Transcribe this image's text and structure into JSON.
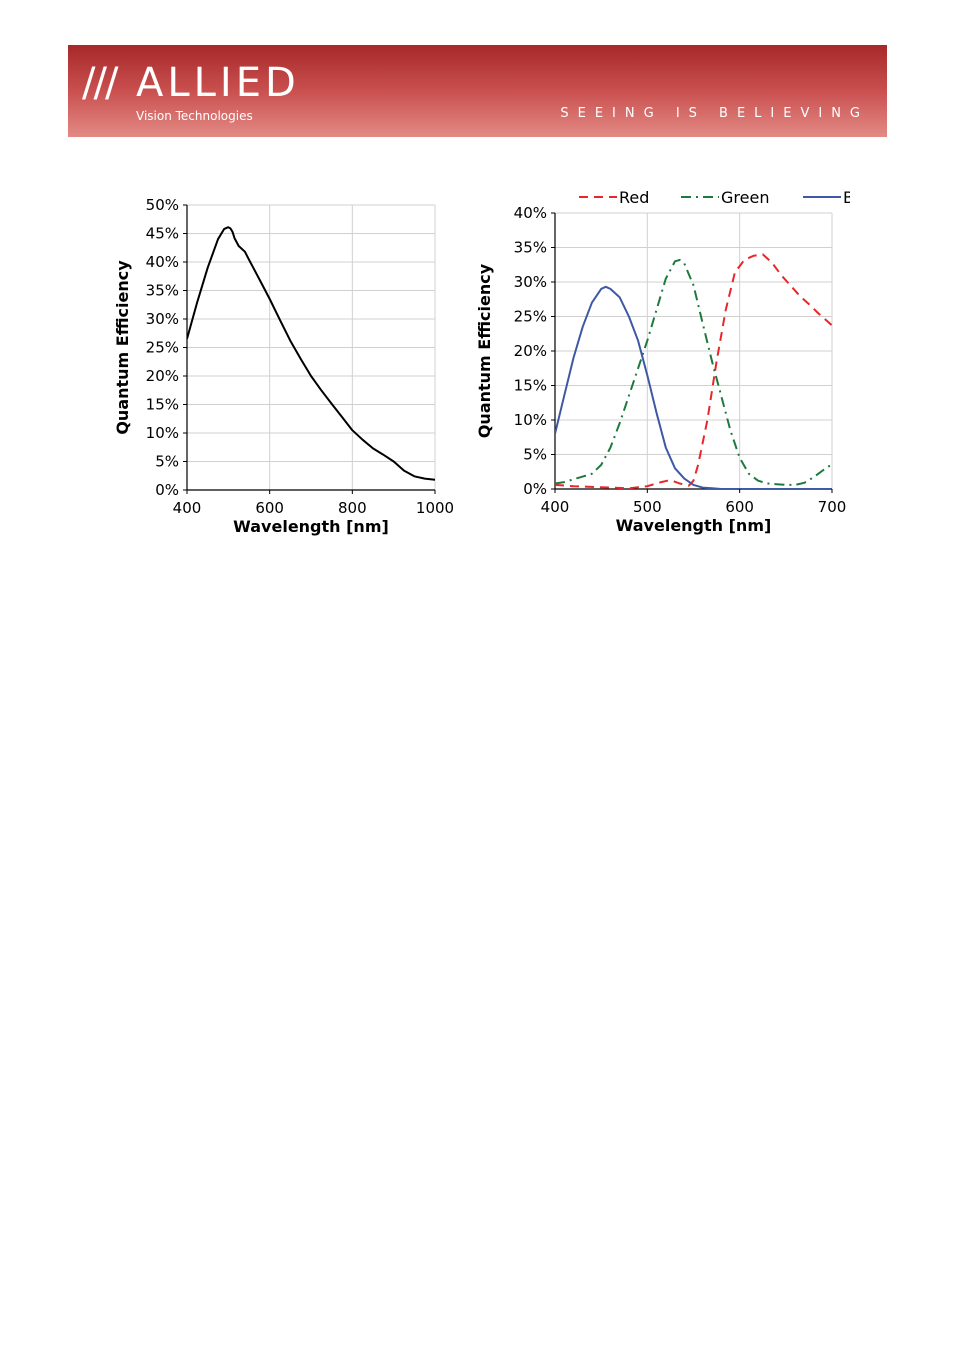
{
  "header": {
    "logo_slashes": "///",
    "logo_name": "ALLIED",
    "logo_sub": "Vision Technologies",
    "tagline": "SEEING IS BELIEVING",
    "colors": {
      "banner_top": "#a8282a",
      "banner_bottom": "#e38a85"
    }
  },
  "chart_data": [
    {
      "type": "line",
      "title": "",
      "xlabel": "Wavelength [nm]",
      "ylabel": "Quantum Efficiency",
      "xlim": [
        400,
        1000
      ],
      "ylim": [
        0,
        50
      ],
      "xticks": [
        400,
        600,
        800,
        1000
      ],
      "yticks": [
        0,
        5,
        10,
        15,
        20,
        25,
        30,
        35,
        40,
        45,
        50
      ],
      "ytick_suffix": "%",
      "grid": true,
      "series": [
        {
          "name": "",
          "color": "#000000",
          "dash": "solid",
          "x": [
            400,
            425,
            450,
            475,
            490,
            500,
            505,
            510,
            515,
            525,
            540,
            550,
            575,
            600,
            625,
            650,
            675,
            700,
            725,
            750,
            775,
            800,
            825,
            850,
            875,
            900,
            925,
            950,
            975,
            1000
          ],
          "y": [
            26.5,
            33.0,
            39.0,
            44.0,
            45.8,
            46.1,
            45.9,
            45.3,
            44.2,
            42.8,
            41.8,
            40.4,
            37.0,
            33.5,
            29.8,
            26.2,
            23.0,
            20.0,
            17.5,
            15.1,
            12.8,
            10.5,
            8.8,
            7.3,
            6.2,
            5.0,
            3.4,
            2.4,
            2.0,
            1.8
          ]
        }
      ]
    },
    {
      "type": "line",
      "title": "",
      "xlabel": "Wavelength [nm]",
      "ylabel": "Quantum Efficiency",
      "xlim": [
        400,
        700
      ],
      "ylim": [
        0,
        40
      ],
      "xticks": [
        400,
        500,
        600,
        700
      ],
      "yticks": [
        0,
        5,
        10,
        15,
        20,
        25,
        30,
        35,
        40
      ],
      "ytick_suffix": "%",
      "grid": true,
      "legend": "top",
      "series": [
        {
          "name": "Red",
          "color": "#e8262b",
          "dash": "dashed",
          "x": [
            400,
            420,
            440,
            460,
            480,
            500,
            515,
            525,
            535,
            545,
            550,
            555,
            565,
            575,
            585,
            595,
            600,
            605,
            615,
            625,
            635,
            645,
            655,
            665,
            675,
            685,
            695,
            700
          ],
          "y": [
            0.6,
            0.4,
            0.3,
            0.2,
            0.1,
            0.4,
            1.0,
            1.3,
            0.8,
            0.5,
            1.2,
            3.5,
            10.0,
            18.5,
            26.0,
            31.5,
            32.3,
            33.2,
            33.8,
            34.0,
            32.8,
            31.0,
            29.5,
            28.0,
            26.8,
            25.5,
            24.3,
            23.7
          ]
        },
        {
          "name": "Green",
          "color": "#1d7a3e",
          "dash": "dashdot",
          "x": [
            400,
            410,
            420,
            430,
            440,
            450,
            460,
            470,
            480,
            490,
            500,
            510,
            520,
            530,
            535,
            540,
            550,
            560,
            570,
            580,
            590,
            600,
            610,
            620,
            630,
            640,
            650,
            660,
            670,
            680,
            690,
            700
          ],
          "y": [
            0.8,
            1.0,
            1.4,
            1.8,
            2.2,
            3.5,
            6.0,
            9.5,
            13.5,
            17.5,
            21.5,
            26.0,
            30.5,
            33.0,
            33.2,
            32.7,
            29.5,
            24.0,
            18.5,
            13.5,
            8.5,
            4.5,
            2.2,
            1.2,
            0.8,
            0.7,
            0.6,
            0.6,
            0.9,
            1.7,
            2.7,
            3.6
          ]
        },
        {
          "name": "Blue",
          "color": "#3e58a6",
          "dash": "solid",
          "x": [
            400,
            410,
            420,
            430,
            440,
            450,
            455,
            460,
            470,
            480,
            490,
            500,
            510,
            520,
            530,
            540,
            550,
            560,
            570,
            580,
            600,
            650,
            700
          ],
          "y": [
            8.0,
            13.5,
            19.0,
            23.5,
            27.0,
            29.0,
            29.3,
            29.0,
            27.8,
            25.0,
            21.5,
            16.5,
            11.0,
            6.0,
            3.0,
            1.5,
            0.6,
            0.2,
            0.1,
            0.0,
            0.0,
            0.0,
            0.0
          ]
        }
      ]
    }
  ]
}
